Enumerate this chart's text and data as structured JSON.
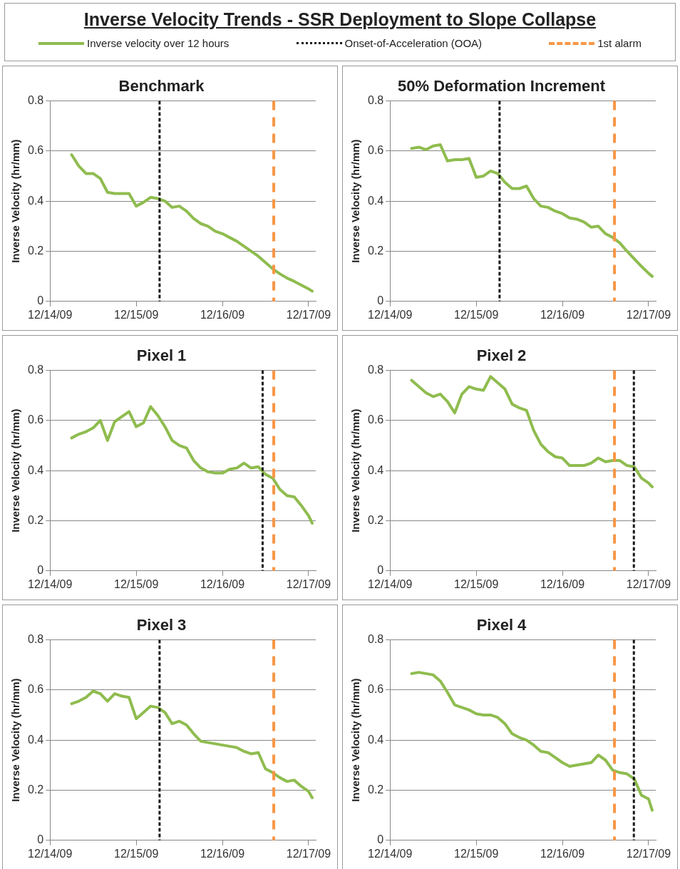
{
  "chart_data": [
    {
      "type": "other",
      "title": "Inverse Velocity Trends - SSR Deployment to Slope Collapse",
      "legend": "top",
      "series": [
        {
          "name": "Inverse velocity over 12 hours",
          "color": "#8fbc4f",
          "line_style": "solid"
        },
        {
          "name": "Onset-of-Acceleration (OOA)",
          "color": "#1a1a1a",
          "line_style": "dotted"
        },
        {
          "name": "1st alarm",
          "color": "#f79646",
          "line_style": "dashed"
        }
      ]
    },
    {
      "type": "line",
      "title": "Benchmark",
      "ylabel": "Inverse Velocity (hr/mm)",
      "grid": "y",
      "x": [
        "--12-14T06:00",
        "--12-14T08:00",
        "--12-14T10:00",
        "--12-14T12:00",
        "--12-14T14:00",
        "--12-14T16:00",
        "--12-14T18:00",
        "--12-14T20:00",
        "--12-14T22:00",
        "--12-15T00:00",
        "--12-15T02:00",
        "--12-15T04:00",
        "--12-15T06:00",
        "--12-15T08:00",
        "--12-15T10:00",
        "--12-15T12:00",
        "--12-15T14:00",
        "--12-15T16:00",
        "--12-15T18:00",
        "--12-15T20:00",
        "--12-15T22:00",
        "--12-16T00:00",
        "--12-16T02:00",
        "--12-16T04:00",
        "--12-16T06:00",
        "--12-16T08:00",
        "--12-16T10:00",
        "--12-16T12:00",
        "--12-16T14:00",
        "--12-16T16:00",
        "--12-16T18:00",
        "--12-16T20:00",
        "--12-16T22:00",
        "--12-17T00:00",
        "--12-17T01:00"
      ],
      "series": [
        {
          "color": "#8fbc4f",
          "values": [
            0.585,
            0.54,
            0.51,
            0.51,
            0.49,
            0.435,
            0.43,
            0.43,
            0.43,
            0.38,
            0.395,
            0.415,
            0.41,
            0.4,
            0.375,
            0.38,
            0.36,
            0.33,
            0.31,
            0.3,
            0.28,
            0.27,
            0.255,
            0.24,
            0.22,
            0.2,
            0.18,
            0.155,
            0.13,
            0.11,
            0.093,
            0.08,
            0.065,
            0.05,
            0.041
          ]
        }
      ],
      "ref_lines": [
        {
          "axis": "x",
          "value": "--12-15T06:30",
          "color": "#1a1a1a",
          "line_style": "dotted"
        },
        {
          "axis": "x",
          "value": "--12-16T14:18",
          "color": "#f79646",
          "line_style": "dashed"
        }
      ],
      "xlim": [
        "--12-14",
        "--12-17T02:00"
      ],
      "xticks": [
        {
          "value": "--12-14",
          "label": "12/14/09"
        },
        {
          "value": "--12-15",
          "label": "12/15/09"
        },
        {
          "value": "--12-16",
          "label": "12/16/09"
        },
        {
          "value": "--12-17",
          "label": "12/17/09"
        }
      ],
      "ylim": [
        0,
        0.8
      ],
      "yticks": [
        0,
        0.2,
        0.4,
        0.6,
        0.8
      ]
    },
    {
      "type": "line",
      "title": "50% Deformation Increment",
      "ylabel": "Inverse Velocity (hr/mm)",
      "grid": "y",
      "x": [
        "--12-14T06:00",
        "--12-14T08:00",
        "--12-14T10:00",
        "--12-14T12:00",
        "--12-14T14:00",
        "--12-14T16:00",
        "--12-14T18:00",
        "--12-14T20:00",
        "--12-14T22:00",
        "--12-15T00:00",
        "--12-15T02:00",
        "--12-15T04:00",
        "--12-15T06:00",
        "--12-15T08:00",
        "--12-15T10:00",
        "--12-15T12:00",
        "--12-15T14:00",
        "--12-15T16:00",
        "--12-15T18:00",
        "--12-15T20:00",
        "--12-15T22:00",
        "--12-16T00:00",
        "--12-16T02:00",
        "--12-16T04:00",
        "--12-16T06:00",
        "--12-16T08:00",
        "--12-16T10:00",
        "--12-16T12:00",
        "--12-16T14:00",
        "--12-16T16:00",
        "--12-16T18:00",
        "--12-16T20:00",
        "--12-16T22:00",
        "--12-17T00:00",
        "--12-17T01:00"
      ],
      "series": [
        {
          "color": "#8fbc4f",
          "values": [
            0.61,
            0.615,
            0.605,
            0.62,
            0.625,
            0.56,
            0.565,
            0.565,
            0.57,
            0.495,
            0.5,
            0.52,
            0.51,
            0.475,
            0.45,
            0.45,
            0.46,
            0.41,
            0.38,
            0.375,
            0.36,
            0.35,
            0.333,
            0.328,
            0.317,
            0.296,
            0.3,
            0.27,
            0.255,
            0.233,
            0.2,
            0.17,
            0.14,
            0.112,
            0.1
          ]
        }
      ],
      "ref_lines": [
        {
          "axis": "x",
          "value": "--12-15T06:30",
          "color": "#1a1a1a",
          "line_style": "dotted"
        },
        {
          "axis": "x",
          "value": "--12-16T14:30",
          "color": "#f79646",
          "line_style": "dashed"
        }
      ],
      "xlim": [
        "--12-14",
        "--12-17T02:00"
      ],
      "xticks": [
        {
          "value": "--12-14",
          "label": "12/14/09"
        },
        {
          "value": "--12-15",
          "label": "12/15/09"
        },
        {
          "value": "--12-16",
          "label": "12/16/09"
        },
        {
          "value": "--12-17",
          "label": "12/17/09"
        }
      ],
      "ylim": [
        0,
        0.8
      ],
      "yticks": [
        0,
        0.2,
        0.4,
        0.6,
        0.8
      ]
    },
    {
      "type": "line",
      "title": "Pixel 1",
      "ylabel": "Inverse Velocity (hr/mm)",
      "grid": "y",
      "x": [
        "--12-14T06:00",
        "--12-14T08:00",
        "--12-14T10:00",
        "--12-14T12:00",
        "--12-14T14:00",
        "--12-14T16:00",
        "--12-14T18:00",
        "--12-14T20:00",
        "--12-14T22:00",
        "--12-15T00:00",
        "--12-15T02:00",
        "--12-15T04:00",
        "--12-15T06:00",
        "--12-15T08:00",
        "--12-15T10:00",
        "--12-15T12:00",
        "--12-15T14:00",
        "--12-15T16:00",
        "--12-15T18:00",
        "--12-15T20:00",
        "--12-15T22:00",
        "--12-16T00:00",
        "--12-16T02:00",
        "--12-16T04:00",
        "--12-16T06:00",
        "--12-16T08:00",
        "--12-16T10:00",
        "--12-16T12:00",
        "--12-16T14:00",
        "--12-16T16:00",
        "--12-16T18:00",
        "--12-16T20:00",
        "--12-16T22:00",
        "--12-17T00:00",
        "--12-17T01:00"
      ],
      "series": [
        {
          "color": "#8fbc4f",
          "values": [
            0.53,
            0.545,
            0.555,
            0.57,
            0.6,
            0.52,
            0.595,
            0.615,
            0.635,
            0.575,
            0.59,
            0.655,
            0.62,
            0.575,
            0.52,
            0.5,
            0.49,
            0.44,
            0.41,
            0.395,
            0.39,
            0.39,
            0.405,
            0.41,
            0.43,
            0.41,
            0.415,
            0.385,
            0.37,
            0.325,
            0.3,
            0.295,
            0.26,
            0.22,
            0.19
          ]
        }
      ],
      "ref_lines": [
        {
          "axis": "x",
          "value": "--12-16T11:12",
          "color": "#1a1a1a",
          "line_style": "dotted"
        },
        {
          "axis": "x",
          "value": "--12-16T14:18",
          "color": "#f79646",
          "line_style": "dashed"
        }
      ],
      "xlim": [
        "--12-14",
        "--12-17T02:00"
      ],
      "xticks": [
        {
          "value": "--12-14",
          "label": "12/14/09"
        },
        {
          "value": "--12-15",
          "label": "12/15/09"
        },
        {
          "value": "--12-16",
          "label": "12/16/09"
        },
        {
          "value": "--12-17",
          "label": "12/17/09"
        }
      ],
      "ylim": [
        0,
        0.8
      ],
      "yticks": [
        0,
        0.2,
        0.4,
        0.6,
        0.8
      ]
    },
    {
      "type": "line",
      "title": "Pixel 2",
      "ylabel": "Inverse Velocity (hr/mm)",
      "grid": "y",
      "x": [
        "--12-14T06:00",
        "--12-14T08:00",
        "--12-14T10:00",
        "--12-14T12:00",
        "--12-14T14:00",
        "--12-14T16:00",
        "--12-14T18:00",
        "--12-14T20:00",
        "--12-14T22:00",
        "--12-15T00:00",
        "--12-15T02:00",
        "--12-15T04:00",
        "--12-15T06:00",
        "--12-15T08:00",
        "--12-15T10:00",
        "--12-15T12:00",
        "--12-15T14:00",
        "--12-15T16:00",
        "--12-15T18:00",
        "--12-15T20:00",
        "--12-15T22:00",
        "--12-16T00:00",
        "--12-16T02:00",
        "--12-16T04:00",
        "--12-16T06:00",
        "--12-16T08:00",
        "--12-16T10:00",
        "--12-16T12:00",
        "--12-16T14:00",
        "--12-16T16:00",
        "--12-16T18:00",
        "--12-16T20:00",
        "--12-16T22:00",
        "--12-17T00:00",
        "--12-17T01:00"
      ],
      "series": [
        {
          "color": "#8fbc4f",
          "values": [
            0.76,
            0.735,
            0.71,
            0.695,
            0.705,
            0.675,
            0.63,
            0.705,
            0.735,
            0.725,
            0.72,
            0.775,
            0.75,
            0.725,
            0.665,
            0.65,
            0.64,
            0.56,
            0.505,
            0.475,
            0.455,
            0.45,
            0.42,
            0.42,
            0.42,
            0.43,
            0.45,
            0.435,
            0.44,
            0.44,
            0.42,
            0.415,
            0.37,
            0.35,
            0.335
          ]
        }
      ],
      "ref_lines": [
        {
          "axis": "x",
          "value": "--12-16T19:54",
          "color": "#1a1a1a",
          "line_style": "dotted"
        },
        {
          "axis": "x",
          "value": "--12-16T14:30",
          "color": "#f79646",
          "line_style": "dashed"
        }
      ],
      "xlim": [
        "--12-14",
        "--12-17T02:00"
      ],
      "xticks": [
        {
          "value": "--12-14",
          "label": "12/14/09"
        },
        {
          "value": "--12-15",
          "label": "12/15/09"
        },
        {
          "value": "--12-16",
          "label": "12/16/09"
        },
        {
          "value": "--12-17",
          "label": "12/17/09"
        }
      ],
      "ylim": [
        0,
        0.8
      ],
      "yticks": [
        0,
        0.2,
        0.4,
        0.6,
        0.8
      ]
    },
    {
      "type": "line",
      "title": "Pixel 3",
      "ylabel": "Inverse Velocity (hr/mm)",
      "grid": "y",
      "x": [
        "--12-14T06:00",
        "--12-14T08:00",
        "--12-14T10:00",
        "--12-14T12:00",
        "--12-14T14:00",
        "--12-14T16:00",
        "--12-14T18:00",
        "--12-14T20:00",
        "--12-14T22:00",
        "--12-15T00:00",
        "--12-15T02:00",
        "--12-15T04:00",
        "--12-15T06:00",
        "--12-15T08:00",
        "--12-15T10:00",
        "--12-15T12:00",
        "--12-15T14:00",
        "--12-15T16:00",
        "--12-15T18:00",
        "--12-15T20:00",
        "--12-15T22:00",
        "--12-16T00:00",
        "--12-16T02:00",
        "--12-16T04:00",
        "--12-16T06:00",
        "--12-16T08:00",
        "--12-16T10:00",
        "--12-16T12:00",
        "--12-16T14:00",
        "--12-16T16:00",
        "--12-16T18:00",
        "--12-16T20:00",
        "--12-16T22:00",
        "--12-17T00:00",
        "--12-17T01:00"
      ],
      "series": [
        {
          "color": "#8fbc4f",
          "values": [
            0.545,
            0.555,
            0.57,
            0.595,
            0.585,
            0.555,
            0.585,
            0.575,
            0.57,
            0.485,
            0.51,
            0.535,
            0.53,
            0.51,
            0.465,
            0.475,
            0.46,
            0.425,
            0.395,
            0.39,
            0.385,
            0.38,
            0.375,
            0.37,
            0.355,
            0.345,
            0.35,
            0.285,
            0.27,
            0.25,
            0.235,
            0.24,
            0.215,
            0.195,
            0.17
          ]
        }
      ],
      "ref_lines": [
        {
          "axis": "x",
          "value": "--12-15T06:30",
          "color": "#1a1a1a",
          "line_style": "dotted"
        },
        {
          "axis": "x",
          "value": "--12-16T14:18",
          "color": "#f79646",
          "line_style": "dashed"
        }
      ],
      "xlim": [
        "--12-14",
        "--12-17T02:00"
      ],
      "xticks": [
        {
          "value": "--12-14",
          "label": "12/14/09"
        },
        {
          "value": "--12-15",
          "label": "12/15/09"
        },
        {
          "value": "--12-16",
          "label": "12/16/09"
        },
        {
          "value": "--12-17",
          "label": "12/17/09"
        }
      ],
      "ylim": [
        0,
        0.8
      ],
      "yticks": [
        0,
        0.2,
        0.4,
        0.6,
        0.8
      ]
    },
    {
      "type": "line",
      "title": "Pixel 4",
      "ylabel": "Inverse Velocity (hr/mm)",
      "grid": "y",
      "x": [
        "--12-14T06:00",
        "--12-14T08:00",
        "--12-14T10:00",
        "--12-14T12:00",
        "--12-14T14:00",
        "--12-14T16:00",
        "--12-14T18:00",
        "--12-14T20:00",
        "--12-14T22:00",
        "--12-15T00:00",
        "--12-15T02:00",
        "--12-15T04:00",
        "--12-15T06:00",
        "--12-15T08:00",
        "--12-15T10:00",
        "--12-15T12:00",
        "--12-15T14:00",
        "--12-15T16:00",
        "--12-15T18:00",
        "--12-15T20:00",
        "--12-15T22:00",
        "--12-16T00:00",
        "--12-16T02:00",
        "--12-16T04:00",
        "--12-16T06:00",
        "--12-16T08:00",
        "--12-16T10:00",
        "--12-16T12:00",
        "--12-16T14:00",
        "--12-16T16:00",
        "--12-16T18:00",
        "--12-16T20:00",
        "--12-16T22:00",
        "--12-17T00:00",
        "--12-17T01:00"
      ],
      "series": [
        {
          "color": "#8fbc4f",
          "values": [
            0.665,
            0.67,
            0.665,
            0.66,
            0.635,
            0.59,
            0.54,
            0.53,
            0.52,
            0.505,
            0.5,
            0.5,
            0.49,
            0.465,
            0.425,
            0.41,
            0.4,
            0.38,
            0.355,
            0.35,
            0.33,
            0.31,
            0.295,
            0.3,
            0.305,
            0.31,
            0.34,
            0.32,
            0.28,
            0.27,
            0.265,
            0.245,
            0.18,
            0.165,
            0.12
          ]
        }
      ],
      "ref_lines": [
        {
          "axis": "x",
          "value": "--12-16T19:54",
          "color": "#1a1a1a",
          "line_style": "dotted"
        },
        {
          "axis": "x",
          "value": "--12-16T14:30",
          "color": "#f79646",
          "line_style": "dashed"
        }
      ],
      "xlim": [
        "--12-14",
        "--12-17T02:00"
      ],
      "xticks": [
        {
          "value": "--12-14",
          "label": "12/14/09"
        },
        {
          "value": "--12-15",
          "label": "12/15/09"
        },
        {
          "value": "--12-16",
          "label": "12/16/09"
        },
        {
          "value": "--12-17",
          "label": "12/17/09"
        }
      ],
      "ylim": [
        0,
        0.8
      ],
      "yticks": [
        0,
        0.2,
        0.4,
        0.6,
        0.8
      ]
    }
  ]
}
